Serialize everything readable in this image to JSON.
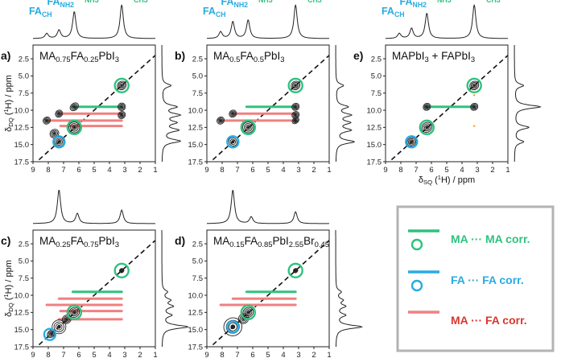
{
  "figure": {
    "colors": {
      "ma": "#2ec27e",
      "fa": "#29abe2",
      "cross": "#f08080",
      "contour": "#222222",
      "frame": "#b3b3b3"
    }
  },
  "chart_data": [
    {
      "type": "2D NMR correlation (DQ-SQ)",
      "panel_label": "a)",
      "title": "MA0.75FA0.25PbI3",
      "title_parts": [
        [
          "MA",
          "n"
        ],
        [
          "0.75",
          "s"
        ],
        [
          "FA",
          "n"
        ],
        [
          "0.25",
          "s"
        ],
        [
          "PbI",
          "n"
        ],
        [
          "3",
          "s"
        ]
      ],
      "xlabel": "δSQ (1H) / ppm",
      "ylabel": "δDQ (1H) / ppm",
      "xlim": [
        9,
        1
      ],
      "ylim": [
        17.5,
        0.5
      ],
      "xticks": [
        9,
        8,
        7,
        6,
        5,
        4,
        3,
        2,
        1
      ],
      "yticks": [
        2.5,
        5.0,
        7.5,
        10.0,
        12.5,
        15.0,
        17.5
      ],
      "show_xlabel": false,
      "show_ylabel": true,
      "top_spectrum": {
        "peaks": [
          [
            8.1,
            0.15
          ],
          [
            7.3,
            0.25
          ],
          [
            6.3,
            0.8
          ],
          [
            3.2,
            1.0
          ]
        ],
        "labels": [
          {
            "text": "FA",
            "sub": "CH",
            "x": 8.3,
            "color": "fa"
          },
          {
            "text": "FA",
            "sub": "NH2",
            "x": 7.3,
            "color": "fa"
          },
          {
            "text": "MA",
            "sub": "NH3",
            "x": 6.1,
            "color": "ma"
          },
          {
            "text": "MA",
            "sub": "CH3",
            "x": 3.2,
            "color": "ma"
          }
        ]
      },
      "side_spectrum": {
        "peaks": [
          [
            6.4,
            0.35
          ],
          [
            9.5,
            0.55
          ],
          [
            10.7,
            0.65
          ],
          [
            11.8,
            0.5
          ],
          [
            12.9,
            0.6
          ],
          [
            14.5,
            0.7
          ]
        ]
      },
      "ma_corr": [
        [
          3.2,
          9.5,
          6.4,
          9.5
        ]
      ],
      "cross_corr": [
        [
          3.2,
          10.5,
          7.3,
          10.5
        ],
        [
          3.2,
          11.5,
          8.1,
          11.5
        ],
        [
          3.2,
          12.3,
          7.2,
          12.3
        ]
      ],
      "ma_circles": [
        [
          3.2,
          6.4
        ],
        [
          6.3,
          12.5
        ]
      ],
      "fa_circles": [
        [
          7.3,
          14.6
        ]
      ],
      "peaks": [
        [
          3.2,
          6.4,
          0.3,
          0.6
        ],
        [
          3.2,
          9.5,
          0.25,
          0.55
        ],
        [
          3.2,
          10.7,
          0.25,
          0.5
        ],
        [
          6.3,
          9.5,
          0.3,
          0.5
        ],
        [
          6.3,
          12.5,
          0.35,
          0.8
        ],
        [
          7.3,
          10.5,
          0.25,
          0.5
        ],
        [
          7.3,
          14.6,
          0.3,
          0.7
        ],
        [
          8.1,
          11.5,
          0.25,
          0.5
        ],
        [
          7.6,
          13.4,
          0.3,
          0.6
        ]
      ]
    },
    {
      "type": "2D NMR correlation (DQ-SQ)",
      "panel_label": "b)",
      "title": "MA0.5FA0.5PbI3",
      "title_parts": [
        [
          "MA",
          "n"
        ],
        [
          "0.5",
          "s"
        ],
        [
          "FA",
          "n"
        ],
        [
          "0.5",
          "s"
        ],
        [
          "PbI",
          "n"
        ],
        [
          "3",
          "s"
        ]
      ],
      "xlabel": "δSQ (1H) / ppm",
      "ylabel": "δDQ (1H) / ppm",
      "xlim": [
        9,
        1
      ],
      "ylim": [
        17.5,
        0.5
      ],
      "xticks": [
        9,
        8,
        7,
        6,
        5,
        4,
        3,
        2,
        1
      ],
      "yticks": [
        2.5,
        5.0,
        7.5,
        10.0,
        12.5,
        15.0,
        17.5
      ],
      "show_xlabel": false,
      "show_ylabel": false,
      "top_spectrum": {
        "peaks": [
          [
            8.1,
            0.2
          ],
          [
            7.3,
            0.5
          ],
          [
            6.3,
            0.55
          ],
          [
            3.2,
            1.0
          ]
        ],
        "labels": [
          {
            "text": "FA",
            "sub": "CH",
            "x": 8.3,
            "color": "fa"
          },
          {
            "text": "FA",
            "sub": "NH2",
            "x": 7.3,
            "color": "fa"
          },
          {
            "text": "MA",
            "sub": "NH3",
            "x": 6.1,
            "color": "ma"
          },
          {
            "text": "MA",
            "sub": "CH3",
            "x": 3.2,
            "color": "ma"
          }
        ]
      },
      "side_spectrum": {
        "peaks": [
          [
            6.4,
            0.3
          ],
          [
            9.5,
            0.45
          ],
          [
            10.7,
            0.55
          ],
          [
            11.8,
            0.5
          ],
          [
            12.9,
            0.55
          ],
          [
            14.6,
            0.7
          ]
        ]
      },
      "ma_corr": [
        [
          3.2,
          9.5,
          6.4,
          9.5
        ]
      ],
      "cross_corr": [
        [
          3.2,
          10.5,
          7.3,
          10.5
        ],
        [
          3.2,
          11.5,
          8.1,
          11.5
        ]
      ],
      "ma_circles": [
        [
          3.2,
          6.4
        ],
        [
          6.3,
          12.5
        ]
      ],
      "fa_circles": [
        [
          7.3,
          14.6
        ]
      ],
      "peaks": [
        [
          3.2,
          6.4,
          0.3,
          0.6
        ],
        [
          3.2,
          9.5,
          0.25,
          0.5
        ],
        [
          3.2,
          10.7,
          0.25,
          0.5
        ],
        [
          3.2,
          11.5,
          0.25,
          0.4
        ],
        [
          6.3,
          12.5,
          0.35,
          0.8
        ],
        [
          7.3,
          10.5,
          0.25,
          0.5
        ],
        [
          7.3,
          14.6,
          0.35,
          0.9
        ],
        [
          8.1,
          11.5,
          0.25,
          0.5
        ]
      ]
    },
    {
      "type": "2D NMR correlation (DQ-SQ)",
      "panel_label": "e)",
      "title": "MAPbI3 + FAPbI3",
      "title_parts": [
        [
          "MAPbI",
          "n"
        ],
        [
          "3",
          "s"
        ],
        [
          " + FAPbI",
          "n"
        ],
        [
          "3",
          "s"
        ]
      ],
      "xlabel": "δSQ (1H) / ppm",
      "ylabel": "δDQ (1H) / ppm",
      "xlim": [
        9,
        1
      ],
      "ylim": [
        17.5,
        0.5
      ],
      "xticks": [
        9,
        8,
        7,
        6,
        5,
        4,
        3,
        2,
        1
      ],
      "yticks": [
        2.5,
        5.0,
        7.5,
        10.0,
        12.5,
        15.0,
        17.5
      ],
      "show_xlabel": true,
      "show_ylabel": false,
      "top_spectrum": {
        "peaks": [
          [
            8.1,
            0.15
          ],
          [
            7.3,
            0.3
          ],
          [
            6.3,
            0.75
          ],
          [
            3.2,
            1.0
          ]
        ],
        "labels": [
          {
            "text": "FA",
            "sub": "CH",
            "x": 8.3,
            "color": "fa"
          },
          {
            "text": "FA",
            "sub": "NH2",
            "x": 7.3,
            "color": "fa"
          },
          {
            "text": "MA",
            "sub": "NH3",
            "x": 6.1,
            "color": "ma"
          },
          {
            "text": "MA",
            "sub": "CH3",
            "x": 3.2,
            "color": "ma"
          }
        ]
      },
      "side_spectrum": {
        "peaks": [
          [
            6.4,
            0.35
          ],
          [
            9.5,
            1.0
          ],
          [
            12.5,
            0.55
          ],
          [
            14.6,
            0.35
          ]
        ]
      },
      "ma_corr": [
        [
          3.2,
          9.5,
          6.4,
          9.5
        ]
      ],
      "cross_corr": [],
      "ma_circles": [
        [
          3.2,
          6.4
        ],
        [
          6.3,
          12.5
        ]
      ],
      "fa_circles": [
        [
          7.3,
          14.6
        ]
      ],
      "peaks": [
        [
          3.2,
          6.4,
          0.3,
          0.6
        ],
        [
          3.2,
          9.5,
          0.25,
          0.5
        ],
        [
          6.3,
          9.5,
          0.25,
          0.5
        ],
        [
          6.3,
          12.5,
          0.35,
          0.7
        ],
        [
          7.3,
          14.6,
          0.3,
          0.6
        ]
      ]
    },
    {
      "type": "2D NMR correlation (DQ-SQ)",
      "panel_label": "c)",
      "title": "MA0.25FA0.75PbI3",
      "title_parts": [
        [
          "MA",
          "n"
        ],
        [
          "0.25",
          "s"
        ],
        [
          "FA",
          "n"
        ],
        [
          "0.75",
          "s"
        ],
        [
          "PbI",
          "n"
        ],
        [
          "3",
          "s"
        ]
      ],
      "xlabel": "δSQ (1H) / ppm",
      "ylabel": "δDQ (1H) / ppm",
      "xlim": [
        9,
        1
      ],
      "ylim": [
        17.5,
        0.5
      ],
      "xticks": [
        9,
        8,
        7,
        6,
        5,
        4,
        3,
        2,
        1
      ],
      "yticks": [
        2.5,
        5.0,
        7.5,
        10.0,
        12.5,
        15.0,
        17.5
      ],
      "show_xlabel": true,
      "show_ylabel": true,
      "top_spectrum": {
        "peaks": [
          [
            7.3,
            1.0
          ],
          [
            6.1,
            0.3
          ],
          [
            3.2,
            0.4
          ]
        ],
        "labels": []
      },
      "side_spectrum": {
        "peaks": [
          [
            9.5,
            0.2
          ],
          [
            10.7,
            0.3
          ],
          [
            11.6,
            0.4
          ],
          [
            12.9,
            0.35
          ],
          [
            14.6,
            1.0
          ]
        ]
      },
      "ma_corr": [
        [
          3.2,
          9.5,
          6.4,
          9.5
        ]
      ],
      "cross_corr": [
        [
          3.2,
          10.5,
          7.3,
          10.5
        ],
        [
          3.2,
          11.4,
          8.1,
          11.4
        ],
        [
          3.2,
          12.3,
          7.2,
          12.3
        ],
        [
          3.2,
          13.5,
          7.3,
          13.5
        ]
      ],
      "ma_circles": [
        [
          3.2,
          6.4
        ],
        [
          6.3,
          12.5
        ]
      ],
      "fa_circles": [
        [
          7.9,
          15.7
        ]
      ],
      "peaks": [
        [
          3.2,
          6.4,
          0.15,
          0.3
        ],
        [
          6.3,
          12.5,
          0.35,
          0.7
        ],
        [
          7.3,
          14.6,
          0.45,
          1.0
        ],
        [
          7.8,
          15.6,
          0.3,
          0.5
        ],
        [
          6.8,
          13.5,
          0.3,
          0.6
        ]
      ]
    },
    {
      "type": "2D NMR correlation (DQ-SQ)",
      "panel_label": "d)",
      "title": "MA0.15FA0.85PbI2.55Br0.45",
      "title_parts": [
        [
          "MA",
          "n"
        ],
        [
          "0.15",
          "s"
        ],
        [
          "FA",
          "n"
        ],
        [
          "0.85",
          "s"
        ],
        [
          "PbI",
          "n"
        ],
        [
          "2.55",
          "s"
        ],
        [
          "Br",
          "n"
        ],
        [
          "0.45",
          "s"
        ]
      ],
      "xlabel": "δSQ (1H) / ppm",
      "ylabel": "δDQ (1H) / ppm",
      "xlim": [
        9,
        1
      ],
      "ylim": [
        17.5,
        0.5
      ],
      "xticks": [
        9,
        8,
        7,
        6,
        5,
        4,
        3,
        2,
        1
      ],
      "yticks": [
        2.5,
        5.0,
        7.5,
        10.0,
        12.5,
        15.0,
        17.5
      ],
      "show_xlabel": true,
      "show_ylabel": false,
      "top_spectrum": {
        "peaks": [
          [
            7.3,
            1.0
          ],
          [
            6.1,
            0.2
          ],
          [
            3.2,
            0.35
          ]
        ],
        "labels": []
      },
      "side_spectrum": {
        "peaks": [
          [
            9.5,
            0.2
          ],
          [
            10.7,
            0.25
          ],
          [
            11.6,
            0.35
          ],
          [
            12.9,
            0.35
          ],
          [
            14.6,
            1.0
          ]
        ]
      },
      "ma_corr": [
        [
          3.2,
          9.5,
          6.4,
          9.5
        ]
      ],
      "cross_corr": [
        [
          3.2,
          10.5,
          7.3,
          10.5
        ],
        [
          3.2,
          11.4,
          8.1,
          11.4
        ]
      ],
      "ma_circles": [
        [
          3.2,
          6.4
        ],
        [
          6.3,
          12.5
        ]
      ],
      "fa_circles": [
        [
          7.3,
          14.6
        ]
      ],
      "peaks": [
        [
          3.2,
          6.4,
          0.15,
          0.3
        ],
        [
          6.3,
          12.5,
          0.35,
          0.7
        ],
        [
          7.3,
          14.6,
          0.6,
          1.3
        ],
        [
          6.6,
          13.4,
          0.35,
          0.7
        ]
      ]
    }
  ],
  "legend": {
    "items": [
      {
        "label": "MA ··· MA corr.",
        "color": "ma"
      },
      {
        "label": "FA ··· FA corr.",
        "color": "fa"
      },
      {
        "label": "MA ··· FA corr.",
        "color": "cross"
      }
    ]
  }
}
